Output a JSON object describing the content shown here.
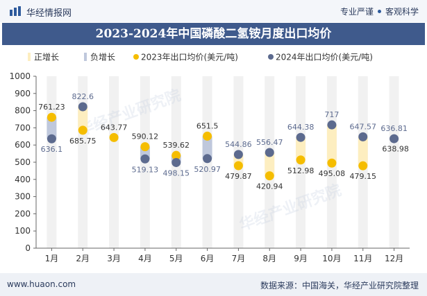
{
  "header": {
    "site_name": "华经情报网",
    "tagline_left": "专业严谨",
    "tagline_right": "客观科学"
  },
  "footer": {
    "url": "www.huaon.com",
    "source": "数据来源：中国海关，华经产业研究院整理"
  },
  "watermark": "华经产业研究院",
  "colors": {
    "series_2023": "#f5bd00",
    "series_2024": "#5c6a8e",
    "increase_bar": "#fdeec0",
    "decrease_bar": "#bfc8dc",
    "label_2023": "#333333",
    "label_2024": "#5c6a8e",
    "title_band": "#3f5a8c"
  },
  "chart_data": {
    "type": "line",
    "title": "2023-2024年中国磷酸二氢铵月度出口均价",
    "categories": [
      "1月",
      "2月",
      "3月",
      "4月",
      "5月",
      "6月",
      "7月",
      "8月",
      "9月",
      "10月",
      "11月",
      "12月"
    ],
    "series": [
      {
        "name": "2023年出口均价(美元/吨)",
        "values": [
          761.23,
          685.75,
          643.77,
          590.12,
          539.62,
          651.5,
          479.87,
          420.94,
          512.98,
          495.08,
          479.15,
          null
        ]
      },
      {
        "name": "2024年出口均价(美元/吨)",
        "values": [
          636.1,
          822.6,
          null,
          519.13,
          498.15,
          520.97,
          544.86,
          556.47,
          644.38,
          717,
          647.57,
          636.81
        ]
      }
    ],
    "extra_labels": [
      {
        "month": "12月",
        "value": 638.98
      }
    ],
    "legend": [
      "正增长",
      "负增长",
      "2023年出口均价(美元/吨)",
      "2024年出口均价(美元/吨)"
    ],
    "legend_position": "top-left",
    "ylim": [
      0,
      1000
    ],
    "yticks": [
      0,
      100,
      200,
      300,
      400,
      500,
      600,
      700,
      800,
      900,
      1000
    ],
    "grid": false
  }
}
